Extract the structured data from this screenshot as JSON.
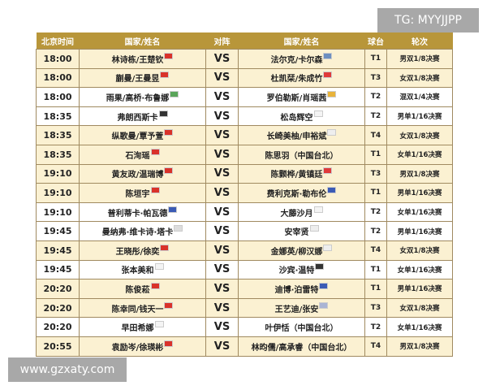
{
  "watermark_top": "TG: MYYJJPP",
  "watermark_bottom": "www.gzxaty.com",
  "headers": [
    "北京时间",
    "国家/姓名",
    "对阵",
    "国家/姓名",
    "球台",
    "轮次"
  ],
  "flag_colors": {
    "CHN": "#d9322a",
    "SWE": "#6d8fc0",
    "BRA": "#5aa55a",
    "ESP": "#e8b33a",
    "GER": "#333333",
    "JPN": "#f4f4f4",
    "KOR": "#eeeeee",
    "FRA": "#3b5bb5",
    "HKG": "#e03a3a",
    "EGY": "#dddddd",
    "USA": "#a9b4d4"
  },
  "rows": [
    {
      "time": "18:00",
      "p1": "林诗栋/王楚钦",
      "f1": "CHN",
      "vs": "VS",
      "p2": "法尔克/卡尔森",
      "f2": "SWE",
      "table": "T1",
      "round": "男双1/8决赛",
      "bg": "c"
    },
    {
      "time": "18:00",
      "p1": "蒯曼/王曼昱",
      "f1": "CHN",
      "vs": "VS",
      "p2": "杜凯栞/朱成竹",
      "f2": "HKG",
      "table": "T3",
      "round": "女双1/8决赛",
      "bg": "c"
    },
    {
      "time": "18:00",
      "p1": "雨果/高桥·布鲁娜",
      "f1": "BRA",
      "vs": "VS",
      "p2": "罗伯勒斯/肖瑶茜",
      "f2": "ESP",
      "table": "T2",
      "round": "混双1/4决赛",
      "bg": "w"
    },
    {
      "time": "18:35",
      "p1": "弗朗西斯卡",
      "f1": "GER",
      "vs": "VS",
      "p2": "松岛辉空",
      "f2": "JPN",
      "table": "T2",
      "round": "男单1/16决赛",
      "bg": "w"
    },
    {
      "time": "18:35",
      "p1": "纵歌曼/覃予萱",
      "f1": "CHN",
      "vs": "VS",
      "p2": "长崎美柚/申裕斌",
      "f2": "KOR",
      "table": "T4",
      "round": "女双1/8决赛",
      "bg": "c"
    },
    {
      "time": "18:35",
      "p1": "石洵瑶",
      "f1": "CHN",
      "vs": "VS",
      "p2": "陈思羽（中国台北）",
      "f2": "",
      "table": "T1",
      "round": "女单1/16决赛",
      "bg": "c"
    },
    {
      "time": "19:10",
      "p1": "黄友政/温瑞博",
      "f1": "CHN",
      "vs": "VS",
      "p2": "陈颢桦/黄镇廷",
      "f2": "HKG",
      "table": "T3",
      "round": "男双1/8决赛",
      "bg": "c"
    },
    {
      "time": "19:10",
      "p1": "陈垣宇",
      "f1": "CHN",
      "vs": "VS",
      "p2": "费利克斯·勒布伦",
      "f2": "FRA",
      "table": "T1",
      "round": "男单1/16决赛",
      "bg": "c"
    },
    {
      "time": "19:10",
      "p1": "普利蒂卡·帕瓦德",
      "f1": "FRA",
      "vs": "VS",
      "p2": "大藤沙月",
      "f2": "JPN",
      "table": "T2",
      "round": "女单1/16决赛",
      "bg": "w"
    },
    {
      "time": "19:45",
      "p1": "曼纳弗·维卡诗·塔卡",
      "f1": "EGY",
      "vs": "VS",
      "p2": "安宰贤",
      "f2": "KOR",
      "table": "T2",
      "round": "男单1/16决赛",
      "bg": "w"
    },
    {
      "time": "19:45",
      "p1": "王晓彤/徐奕",
      "f1": "CHN",
      "vs": "VS",
      "p2": "金娜英/柳汉娜",
      "f2": "KOR",
      "table": "T4",
      "round": "女双1/8决赛",
      "bg": "c"
    },
    {
      "time": "19:45",
      "p1": "张本美和",
      "f1": "JPN",
      "vs": "VS",
      "p2": "沙宾·温特",
      "f2": "GER",
      "table": "T1",
      "round": "女单1/16决赛",
      "bg": "w"
    },
    {
      "time": "20:20",
      "p1": "陈俊菘",
      "f1": "CHN",
      "vs": "VS",
      "p2": "迪博·泊雷特",
      "f2": "FRA",
      "table": "T1",
      "round": "男单1/16决赛",
      "bg": "c"
    },
    {
      "time": "20:20",
      "p1": "陈幸同/钱天一",
      "f1": "CHN",
      "vs": "VS",
      "p2": "王艺迪/张安",
      "f2": "USA",
      "table": "T3",
      "round": "女双1/8决赛",
      "bg": "c"
    },
    {
      "time": "20:20",
      "p1": "早田希娜",
      "f1": "JPN",
      "vs": "VS",
      "p2": "叶伊恬（中国台北）",
      "f2": "",
      "table": "T2",
      "round": "女单1/16决赛",
      "bg": "w"
    },
    {
      "time": "20:55",
      "p1": "袁励岑/徐瑛彬",
      "f1": "CHN",
      "vs": "VS",
      "p2": "林昀儒/高承睿（中国台北）",
      "f2": "",
      "table": "T4",
      "round": "男双1/8决赛",
      "bg": "c"
    }
  ]
}
